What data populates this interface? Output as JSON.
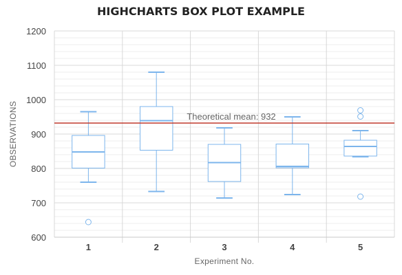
{
  "chart_data": {
    "type": "boxplot",
    "title": "HIGHCHARTS BOX PLOT EXAMPLE",
    "xlabel": "Experiment No.",
    "ylabel": "OBSERVATIONS",
    "categories": [
      "1",
      "2",
      "3",
      "4",
      "5"
    ],
    "ylim": [
      600,
      1200
    ],
    "ytick_step": 100,
    "yminor_step": 20,
    "grid": true,
    "colors": {
      "box": "#7cb5ec",
      "plotline": "#c0392b",
      "grid": "#d8d8d8",
      "minor_grid": "#ececec"
    },
    "boxes": [
      {
        "low": 760,
        "q1": 801,
        "median": 848,
        "q3": 896,
        "high": 965
      },
      {
        "low": 733,
        "q1": 853,
        "median": 939,
        "q3": 980,
        "high": 1080
      },
      {
        "low": 714,
        "q1": 762,
        "median": 817,
        "q3": 870,
        "high": 918
      },
      {
        "low": 724,
        "q1": 802,
        "median": 806,
        "q3": 871,
        "high": 950
      },
      {
        "low": 834,
        "q1": 836,
        "median": 864,
        "q3": 882,
        "high": 910
      }
    ],
    "outliers": [
      {
        "category": 0,
        "value": 644
      },
      {
        "category": 4,
        "value": 718
      },
      {
        "category": 4,
        "value": 951
      },
      {
        "category": 4,
        "value": 969
      }
    ],
    "plot_line": {
      "value": 932,
      "label": "Theoretical mean: 932"
    }
  }
}
